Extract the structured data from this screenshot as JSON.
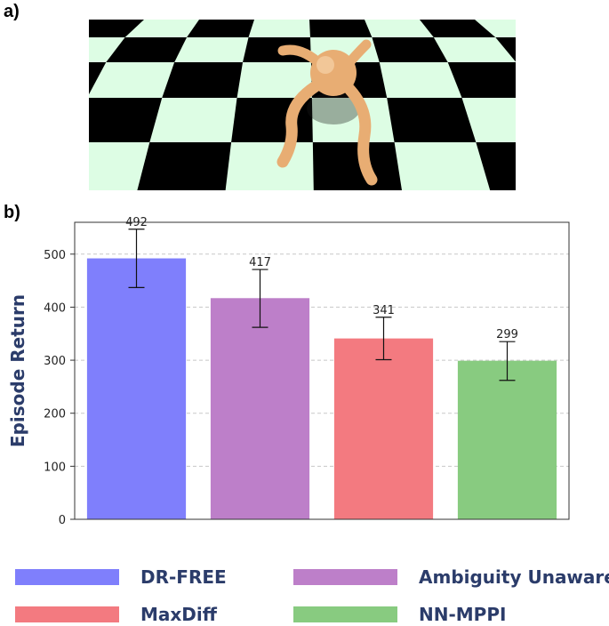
{
  "panel_labels": {
    "a": "a)",
    "b": "b)"
  },
  "scene": {
    "floor_colors": {
      "light": "#ddfde4",
      "dark": "#000000"
    },
    "robot_color": "#e8ad73"
  },
  "chart_data": {
    "type": "bar",
    "categories": [
      "DR-FREE",
      "Ambiguity Unaware",
      "MaxDiff",
      "NN-MPPI"
    ],
    "values": [
      492,
      417,
      341,
      299
    ],
    "error_low": [
      437,
      362,
      301,
      262
    ],
    "error_high": [
      547,
      471,
      381,
      335
    ],
    "data_labels": [
      "492",
      "417",
      "341",
      "299"
    ],
    "colors": [
      "#7f7ffc",
      "#bd7fc9",
      "#f37a80",
      "#88cb80"
    ],
    "title": "",
    "xlabel": "",
    "ylabel": "Episode Return",
    "ylim": [
      0,
      560
    ],
    "yticks": [
      0,
      100,
      200,
      300,
      400,
      500
    ],
    "ytick_labels": [
      "0",
      "100",
      "200",
      "300",
      "400",
      "500"
    ],
    "grid": true,
    "legend_position": "bottom"
  },
  "legend": {
    "items": [
      {
        "label": "DR-FREE",
        "color": "#7f7ffc"
      },
      {
        "label": "Ambiguity Unaware",
        "color": "#bd7fc9"
      },
      {
        "label": "MaxDiff",
        "color": "#f37a80"
      },
      {
        "label": "NN-MPPI",
        "color": "#88cb80"
      }
    ]
  }
}
